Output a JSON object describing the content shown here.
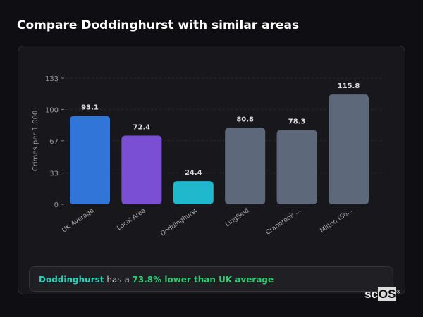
{
  "title": "Compare Doddinghurst with similar areas",
  "chart_data": {
    "type": "bar",
    "ylabel": "Crimes per 1,000",
    "ylim": [
      0,
      133
    ],
    "yticks": [
      0,
      33,
      67,
      100,
      133
    ],
    "grid": true,
    "categories": [
      "UK Average",
      "Local Area",
      "Doddinghurst",
      "Lingfield",
      "Cranbrook ...",
      "Milton (So..."
    ],
    "values": [
      93.1,
      72.4,
      24.4,
      80.8,
      78.3,
      115.8
    ],
    "value_labels": [
      "93.1",
      "72.4",
      "24.4",
      "80.8",
      "78.3",
      "115.8"
    ],
    "colors": [
      "#3275d9",
      "#7b4fd4",
      "#1fb8cc",
      "#5d687b",
      "#5d687b",
      "#5d687b"
    ]
  },
  "summary": {
    "place": "Doddinghurst",
    "middle": " has a ",
    "highlight": "73.8% lower than UK average"
  },
  "logo": {
    "text_a": "sc",
    "text_b": "OS",
    "mark": "®"
  }
}
